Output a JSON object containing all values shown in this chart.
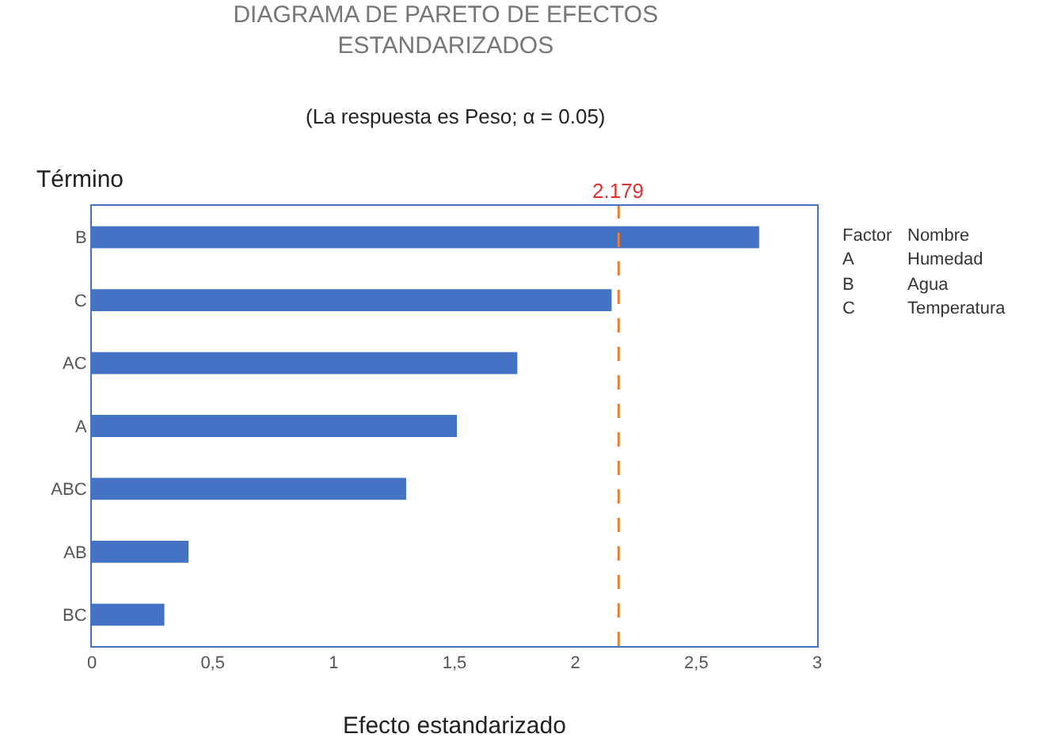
{
  "chart_data": {
    "type": "bar",
    "orientation": "horizontal",
    "title": "DIAGRAMA DE PARETO DE EFECTOS\nESTANDARIZADOS",
    "subtitle": "(La respuesta es Peso; α = 0.05)",
    "xlabel": "Efecto estandarizado",
    "ylabel": "Término",
    "categories": [
      "B",
      "C",
      "AC",
      "A",
      "ABC",
      "AB",
      "BC"
    ],
    "values": [
      2.76,
      2.15,
      1.76,
      1.51,
      1.3,
      0.4,
      0.3
    ],
    "color": "#4472c4",
    "xlim": [
      0,
      3
    ],
    "xticks": [
      0,
      {
        "value": 0.5,
        "label": "0,5"
      },
      1,
      {
        "value": 1.5,
        "label": "1,5"
      },
      2,
      {
        "value": 2.5,
        "label": "2,5"
      },
      3
    ],
    "ref_lines": [
      {
        "axis": "x",
        "value": 2.179,
        "label": "2.179",
        "color": "#ed7d31",
        "line_style": "dashed"
      }
    ],
    "annotations": [
      "Factor",
      "Nombre",
      "A",
      "Humedad",
      "B",
      "Agua",
      "C",
      "Temperatura"
    ],
    "grid": false,
    "legend": false
  }
}
